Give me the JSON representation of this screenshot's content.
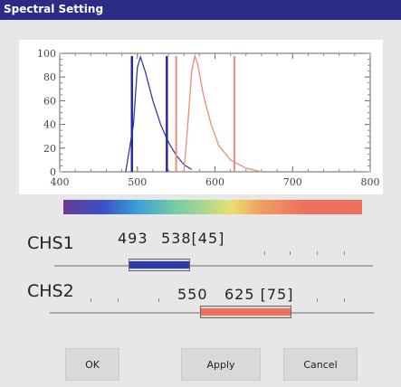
{
  "window": {
    "title": "Spectral Setting"
  },
  "chart_data": {
    "type": "line",
    "xlim": [
      400,
      800
    ],
    "ylim": [
      0,
      100
    ],
    "x_ticks": [
      "400",
      "500",
      "600",
      "700",
      "800"
    ],
    "y_ticks": [
      "0",
      "20",
      "40",
      "60",
      "80",
      "100"
    ],
    "series": [
      {
        "color": "#3a3aaa",
        "x": [
          485,
          495,
          500,
          504,
          510,
          520,
          530,
          540,
          550,
          560,
          570
        ],
        "y": [
          0,
          40,
          88,
          97,
          85,
          60,
          40,
          25,
          14,
          6,
          2
        ]
      },
      {
        "color": "#f08a7a",
        "x": [
          560,
          565,
          570,
          574,
          578,
          585,
          595,
          605,
          620,
          640,
          660
        ],
        "y": [
          0,
          40,
          85,
          98,
          90,
          65,
          40,
          22,
          10,
          3,
          0
        ]
      }
    ],
    "vlines": [
      {
        "x": 493,
        "color": "#2a2aa8"
      },
      {
        "x": 538,
        "color": "#2a2aa8"
      },
      {
        "x": 550,
        "color": "#f08a7a"
      },
      {
        "x": 625,
        "color": "#f08a7a"
      }
    ]
  },
  "channels": [
    {
      "label": "CHS1",
      "start": "493",
      "end_bw": "538[45]",
      "color": "#2a3aa8",
      "range": [
        493,
        538
      ]
    },
    {
      "label": "CHS2",
      "start": "550",
      "end_bw": "625 [75]",
      "color": "#f0705a",
      "range": [
        550,
        625
      ]
    }
  ],
  "buttons": {
    "ok": "OK",
    "apply": "Apply",
    "cancel": "Cancel"
  }
}
